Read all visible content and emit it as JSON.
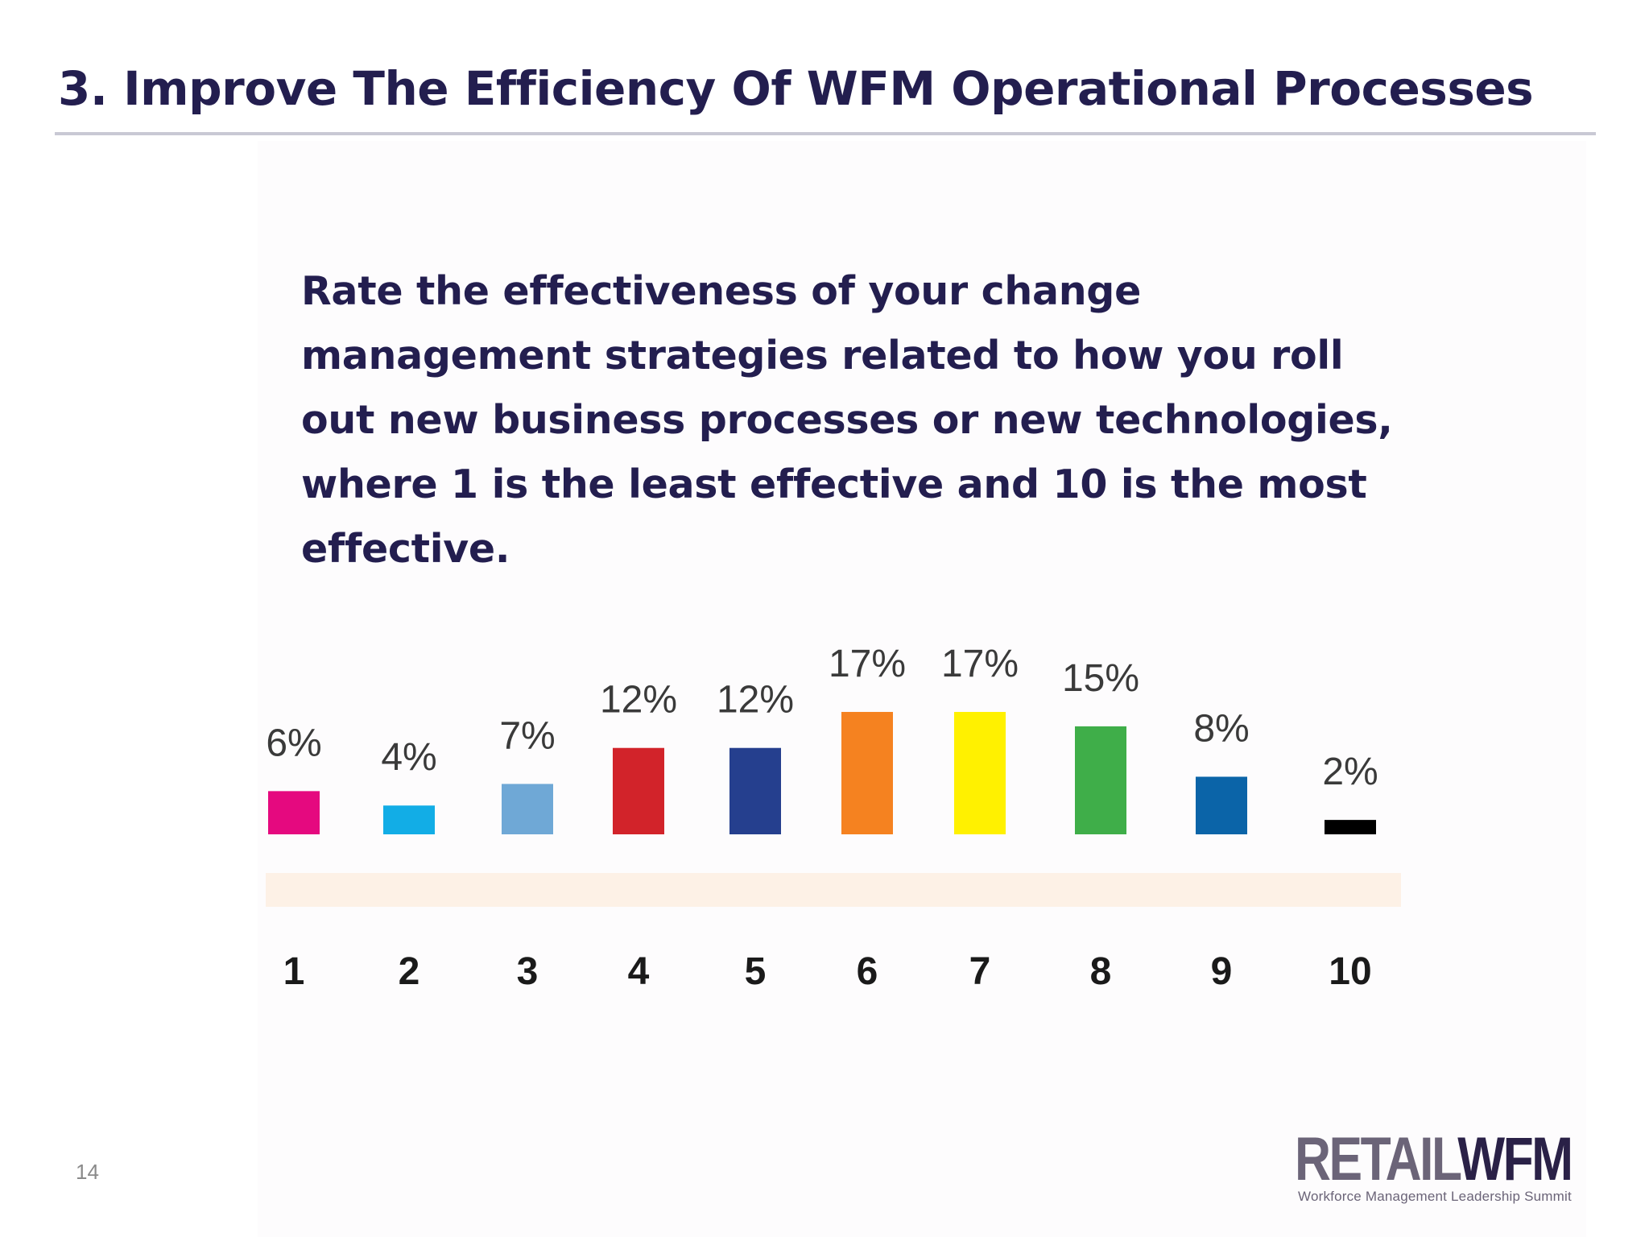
{
  "slide": {
    "title": "3. Improve The Efficiency Of WFM Operational Processes",
    "question": "Rate the effectiveness of your change management strategies related to how you roll out new business processes or new technologies, where 1 is the least effective and 10 is the most effective.",
    "page_number": "14"
  },
  "logo": {
    "retail": "RETAIL",
    "wfm": "WFM",
    "tagline": "Workforce Management Leadership Summit"
  },
  "chart_data": {
    "type": "bar",
    "title": "",
    "xlabel": "",
    "ylabel": "",
    "categories": [
      "1",
      "2",
      "3",
      "4",
      "5",
      "6",
      "7",
      "8",
      "9",
      "10"
    ],
    "values": [
      6,
      4,
      7,
      12,
      12,
      17,
      17,
      15,
      8,
      2
    ],
    "value_labels": [
      "6%",
      "4%",
      "7%",
      "12%",
      "12%",
      "17%",
      "17%",
      "15%",
      "8%",
      "2%"
    ],
    "unit": "%",
    "colors": [
      "#e5097f",
      "#12ade6",
      "#6fa8d6",
      "#d2232a",
      "#253f8e",
      "#f58220",
      "#fff100",
      "#3fae49",
      "#0b64a8",
      "#000000"
    ],
    "band_color": "#fdf1e6",
    "ylim": [
      0,
      20
    ],
    "grid": false,
    "legend": "none"
  }
}
